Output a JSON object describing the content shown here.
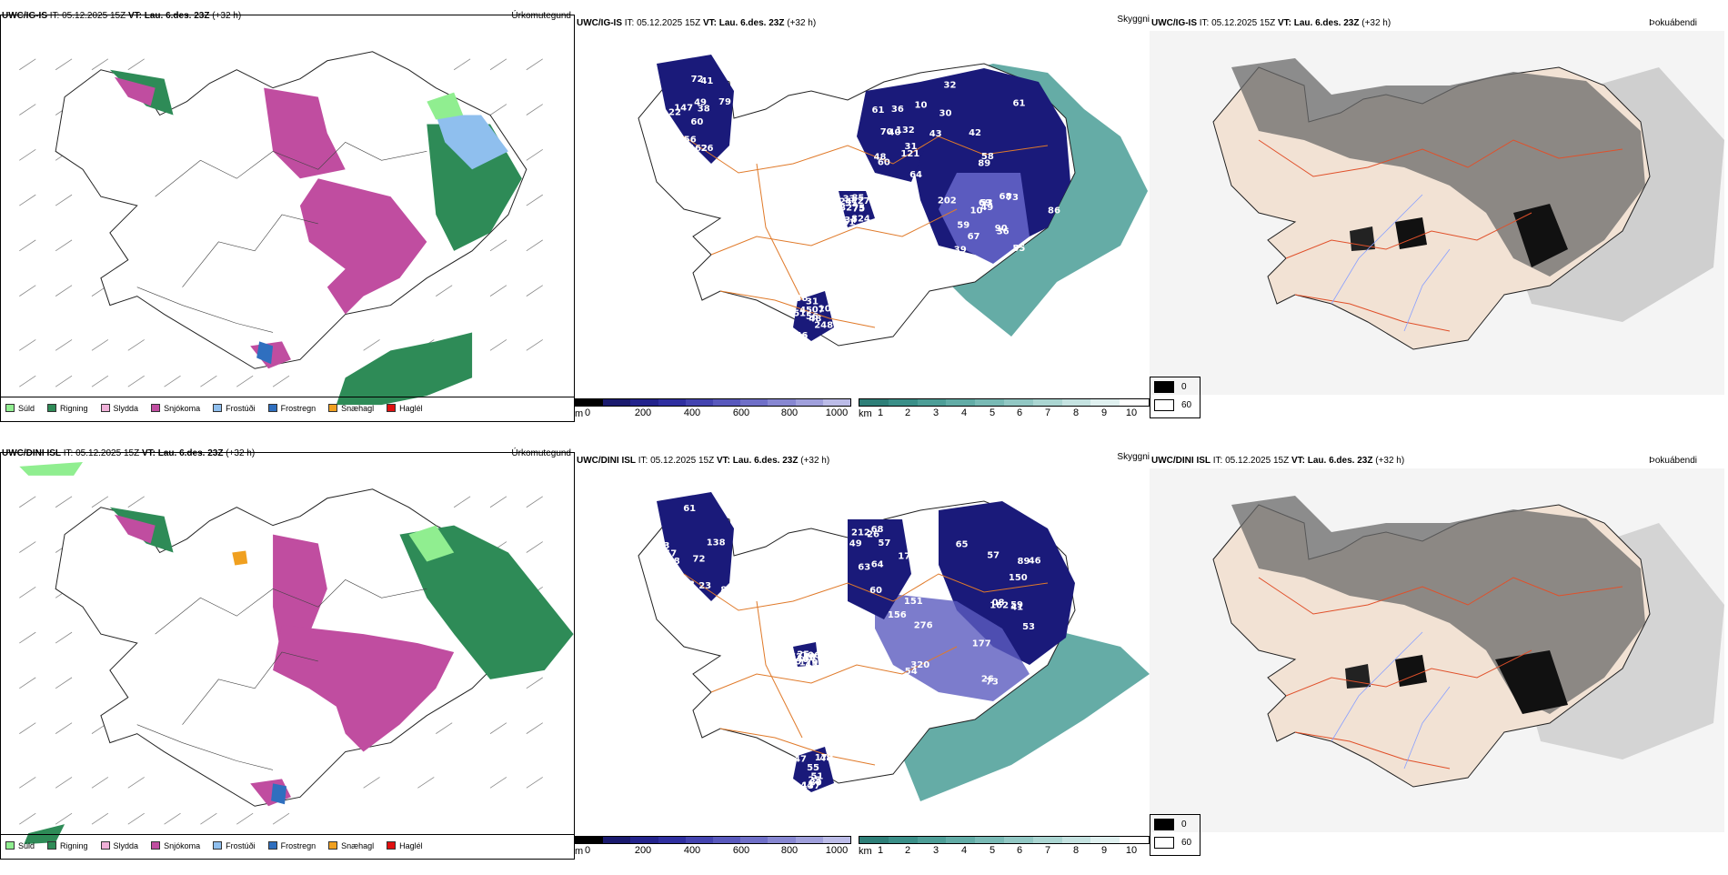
{
  "rows": [
    {
      "model": "UWC/IG-IS",
      "init_prefix": "IT:",
      "init": "05.12.2025 15Z",
      "valid_prefix": "VT:",
      "valid": "Lau. 6.des. 23Z",
      "lead": "(+32 h)",
      "precip_label": "Úrkomutegund",
      "vis_label": "Skyggni",
      "fog_label": "Þokuábendi",
      "vis_numbers": [
        "60",
        "61",
        "58",
        "56",
        "75",
        "67",
        "41",
        "36",
        "61",
        "48",
        "33",
        "55",
        "22",
        "10",
        "89",
        "07",
        "61",
        "69",
        "49",
        "48",
        "42",
        "43",
        "34",
        "53",
        "38",
        "31",
        "30",
        "31",
        "32",
        "90",
        "79",
        "40",
        "49",
        "56",
        "55",
        "68",
        "156",
        "64",
        "86",
        "248",
        "85",
        "10",
        "147",
        "121",
        "59",
        "51",
        "75",
        "39",
        "162",
        "132",
        "202",
        "107",
        "247",
        "36",
        "26",
        "60",
        "32",
        "38",
        "824",
        "73",
        "72",
        "70",
        "43",
        "45",
        "27"
      ]
    },
    {
      "model": "UWC/DINI ISL",
      "init_prefix": "IT:",
      "init": "05.12.2025 15Z",
      "valid_prefix": "VT:",
      "valid": "Lau. 6.des. 23Z",
      "lead": "(+32 h)",
      "precip_label": "Úrkomutegund",
      "vis_label": "Skyggni",
      "fog_label": "Þokuábendi",
      "vis_numbers": [
        "83",
        "68",
        "46",
        "41",
        "47",
        "45",
        "57",
        "57",
        "57",
        "08",
        "55",
        "56",
        "61",
        "49",
        "65",
        "54",
        "80",
        "62",
        "72",
        "60",
        "53",
        "73",
        "48",
        "25",
        "36",
        "64",
        "59",
        "151",
        "137",
        "179",
        "118",
        "156",
        "150",
        "43",
        "44",
        "240",
        "138",
        "212",
        "177",
        "276",
        "25",
        "106",
        "84",
        "174",
        "162",
        "320",
        "172",
        "60",
        "43",
        "63",
        "89",
        "26",
        "51",
        "10",
        "23",
        "26"
      ]
    }
  ],
  "precip_legend": [
    {
      "label": "Súld",
      "color": "#90ee90"
    },
    {
      "label": "Rigning",
      "color": "#2e8b57"
    },
    {
      "label": "Slydda",
      "color": "#f0b0d8"
    },
    {
      "label": "Snjókoma",
      "color": "#c04da0"
    },
    {
      "label": "Frostúði",
      "color": "#8fbfee"
    },
    {
      "label": "Frostregn",
      "color": "#2f6fbf"
    },
    {
      "label": "Snæhagl",
      "color": "#f0a020"
    },
    {
      "label": "Haglél",
      "color": "#e01010"
    }
  ],
  "cloudbase_bar": {
    "unit": "m",
    "ticks": [
      "0",
      "200",
      "400",
      "600",
      "800",
      "1000"
    ]
  },
  "visibility_bar": {
    "unit": "km",
    "ticks": [
      "1",
      "2",
      "3",
      "4",
      "5",
      "6",
      "7",
      "8",
      "9",
      "10"
    ]
  },
  "fog_scale": [
    {
      "label": "0",
      "color": "#000000"
    },
    {
      "label": "60",
      "color": "#ffffff"
    }
  ]
}
